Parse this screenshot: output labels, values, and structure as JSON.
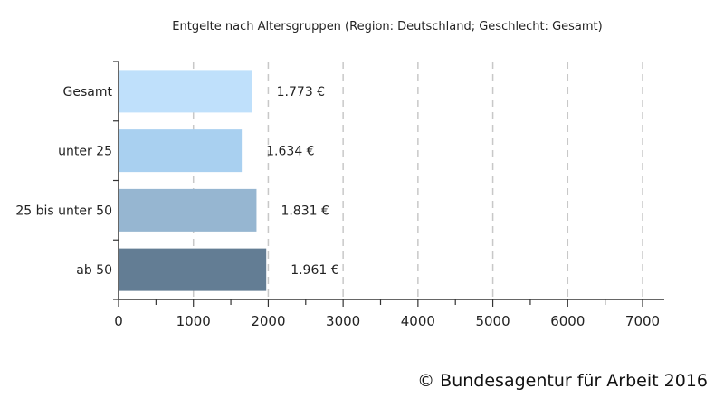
{
  "chart_data": {
    "type": "bar",
    "orientation": "horizontal",
    "title": "Entgelte nach Altersgruppen (Region: Deutschland; Geschlecht: Gesamt)",
    "categories": [
      "Gesamt",
      "unter 25",
      "25 bis unter 50",
      "ab 50"
    ],
    "values": [
      1773,
      1634,
      1831,
      1961
    ],
    "value_labels": [
      "1.773 €",
      "1.634 €",
      "1.831 €",
      "1.961 €"
    ],
    "bar_colors": [
      "#bfe0fb",
      "#a9d0f0",
      "#96b6d1",
      "#637d94"
    ],
    "xlim": [
      0,
      7000
    ],
    "xticks": [
      0,
      1000,
      2000,
      3000,
      4000,
      5000,
      6000,
      7000
    ],
    "xtick_labels": [
      "0",
      "1000",
      "2000",
      "3000",
      "4000",
      "5000",
      "6000",
      "7000"
    ],
    "grid": "vertical-dashed",
    "xlabel": "",
    "ylabel": ""
  },
  "copyright": "© Bundesagentur für Arbeit 2016"
}
